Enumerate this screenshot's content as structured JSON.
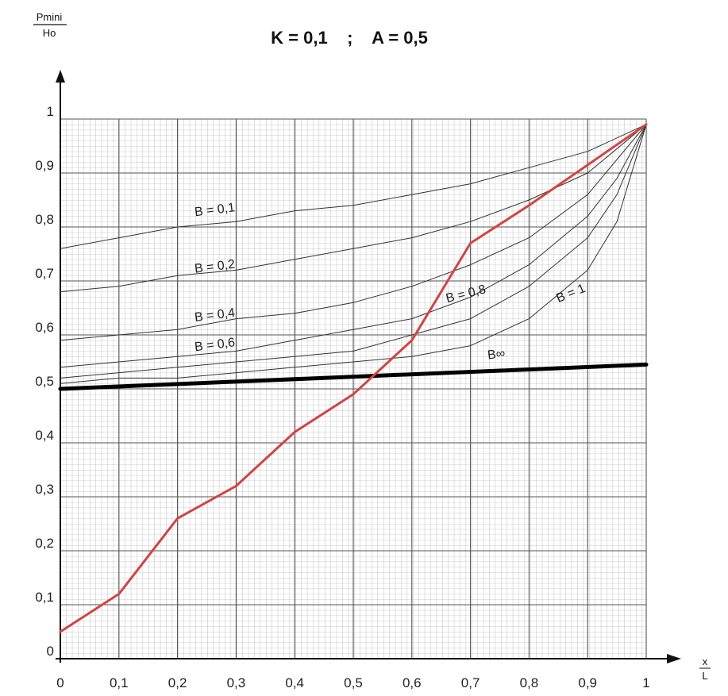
{
  "chart_data": {
    "type": "line",
    "title": "K = 0,1    ;    A = 0,5",
    "ylabel_num": "Pmini",
    "ylabel_den": "Ho",
    "xlabel_num": "x",
    "xlabel_den": "L",
    "xlim": [
      0,
      1
    ],
    "ylim": [
      0,
      1
    ],
    "x_ticks": [
      "0",
      "0,1",
      "0,2",
      "0,3",
      "0,4",
      "0,5",
      "0,6",
      "0,7",
      "0,8",
      "0,9",
      "1"
    ],
    "y_ticks": [
      "0",
      "0,1",
      "0,2",
      "0,3",
      "0,4",
      "0,5",
      "0,6",
      "0,7",
      "0,8",
      "0,9",
      "1"
    ],
    "grid": true,
    "series": [
      {
        "name": "B = 0,1",
        "label_at": [
          0.23,
          0.82
        ],
        "color": "#333333",
        "width": 1,
        "x": [
          0,
          0.1,
          0.2,
          0.3,
          0.4,
          0.5,
          0.6,
          0.7,
          0.8,
          0.9,
          1
        ],
        "y": [
          0.76,
          0.78,
          0.8,
          0.81,
          0.83,
          0.84,
          0.86,
          0.88,
          0.91,
          0.94,
          0.99
        ]
      },
      {
        "name": "B = 0,2",
        "label_at": [
          0.23,
          0.715
        ],
        "color": "#333333",
        "width": 1,
        "x": [
          0,
          0.1,
          0.2,
          0.3,
          0.4,
          0.5,
          0.6,
          0.7,
          0.8,
          0.9,
          1
        ],
        "y": [
          0.68,
          0.69,
          0.71,
          0.72,
          0.74,
          0.76,
          0.78,
          0.81,
          0.85,
          0.9,
          0.99
        ]
      },
      {
        "name": "B = 0,4",
        "label_at": [
          0.23,
          0.625
        ],
        "color": "#333333",
        "width": 1,
        "x": [
          0,
          0.1,
          0.2,
          0.3,
          0.4,
          0.5,
          0.6,
          0.7,
          0.8,
          0.9,
          1
        ],
        "y": [
          0.59,
          0.6,
          0.61,
          0.63,
          0.64,
          0.66,
          0.69,
          0.73,
          0.78,
          0.86,
          0.99
        ]
      },
      {
        "name": "B = 0,6",
        "label_at": [
          0.23,
          0.57
        ],
        "color": "#333333",
        "width": 1,
        "x": [
          0,
          0.1,
          0.2,
          0.3,
          0.4,
          0.5,
          0.6,
          0.7,
          0.8,
          0.9,
          0.95,
          1
        ],
        "y": [
          0.54,
          0.55,
          0.56,
          0.57,
          0.59,
          0.61,
          0.63,
          0.67,
          0.73,
          0.82,
          0.89,
          0.99
        ]
      },
      {
        "name": "B = 0,8",
        "label_at": [
          0.66,
          0.66
        ],
        "color": "#333333",
        "width": 1,
        "x": [
          0,
          0.1,
          0.2,
          0.3,
          0.4,
          0.5,
          0.6,
          0.7,
          0.8,
          0.9,
          0.95,
          1
        ],
        "y": [
          0.52,
          0.53,
          0.54,
          0.55,
          0.56,
          0.57,
          0.6,
          0.63,
          0.69,
          0.78,
          0.86,
          0.99
        ]
      },
      {
        "name": "B = 1",
        "label_at": [
          0.85,
          0.66
        ],
        "color": "#333333",
        "width": 1,
        "x": [
          0,
          0.1,
          0.2,
          0.3,
          0.4,
          0.5,
          0.6,
          0.7,
          0.8,
          0.9,
          0.95,
          1
        ],
        "y": [
          0.51,
          0.52,
          0.52,
          0.53,
          0.54,
          0.55,
          0.56,
          0.58,
          0.63,
          0.72,
          0.81,
          0.99
        ]
      },
      {
        "name": "B∞",
        "label_at": [
          0.73,
          0.555
        ],
        "color": "#000000",
        "width": 5,
        "x": [
          0,
          1
        ],
        "y": [
          0.5,
          0.545
        ]
      },
      {
        "name": "",
        "color": "#d04545",
        "width": 3,
        "x": [
          0,
          0.1,
          0.2,
          0.3,
          0.4,
          0.5,
          0.6,
          0.7,
          0.8,
          1
        ],
        "y": [
          0.05,
          0.12,
          0.26,
          0.32,
          0.42,
          0.49,
          0.59,
          0.77,
          0.84,
          0.99
        ]
      }
    ]
  }
}
